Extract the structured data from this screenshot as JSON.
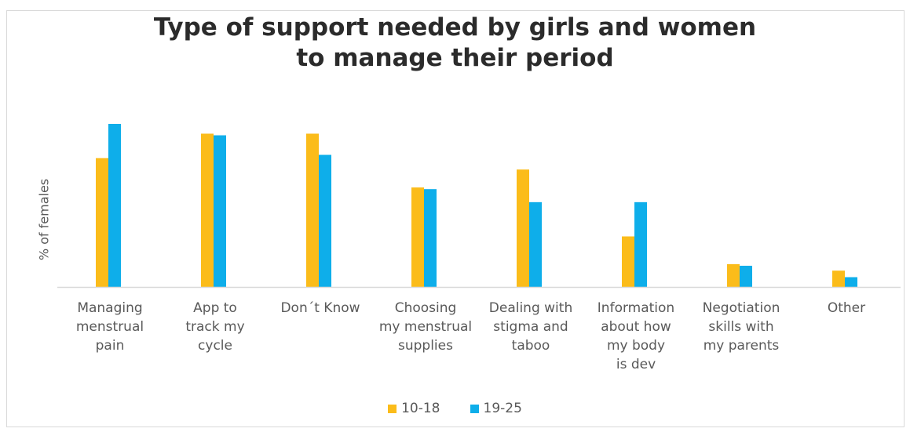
{
  "chart_data": {
    "type": "bar",
    "title": [
      "Type of support needed by girls and women",
      "to manage their period"
    ],
    "ylabel": "% of females",
    "xlabel": "",
    "ylim": [
      0,
      100
    ],
    "grid": false,
    "legend_position": "bottom",
    "categories": [
      [
        "Managing",
        "menstrual",
        "pain"
      ],
      [
        "App to",
        "track my",
        "cycle"
      ],
      [
        "Don´t Know"
      ],
      [
        "Choosing",
        "my menstrual",
        "supplies"
      ],
      [
        "Dealing with",
        "stigma and",
        "taboo"
      ],
      [
        "Information",
        "about how",
        "my body",
        "is dev"
      ],
      [
        "Negotiation",
        "skills with",
        "my parents"
      ],
      [
        "Other"
      ]
    ],
    "series": [
      {
        "name": "10-18",
        "color": "#fbbc1a",
        "values": [
          79,
          94,
          94,
          61,
          72,
          31,
          14,
          10
        ]
      },
      {
        "name": "19-25",
        "color": "#0eaeea",
        "values": [
          100,
          93,
          81,
          60,
          52,
          52,
          13,
          6
        ]
      }
    ]
  }
}
